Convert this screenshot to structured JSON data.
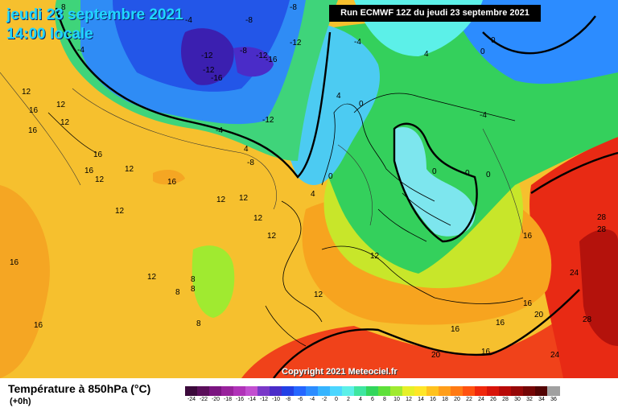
{
  "header": {
    "date_line": "jeudi 23 septembre 2021",
    "time_line": "14:00 locale",
    "run_info": "Run ECMWF 12Z du jeudi 23 septembre 2021"
  },
  "map": {
    "copyright": "Copyright 2021 Meteociel.fr",
    "contour_labels": [
      "8",
      "-8",
      "-4",
      "-8",
      "-12",
      "-12",
      "-8",
      "-12",
      "-16",
      "-12",
      "-16",
      "-12",
      "-4",
      "-4",
      "0",
      "-4",
      "4",
      "0",
      "-4",
      "0",
      "4",
      "4",
      "-8",
      "0",
      "0",
      "0",
      "4",
      "0",
      "12",
      "12",
      "16",
      "16",
      "16",
      "12",
      "16",
      "12",
      "12",
      "12",
      "12",
      "12",
      "12",
      "8",
      "8",
      "8",
      "12",
      "8",
      "12",
      "16",
      "16",
      "28",
      "28",
      "24",
      "16",
      "16",
      "20",
      "24",
      "28",
      "20",
      "16",
      "16",
      "16",
      "12",
      "12",
      "16"
    ]
  },
  "legend": {
    "title": "Température à 850hPa (°C)",
    "subtitle": "(+0h)",
    "scale": [
      {
        "label": "-24",
        "color": "#3b0a3b"
      },
      {
        "label": "-22",
        "color": "#5a0f5a"
      },
      {
        "label": "-20",
        "color": "#7a1480"
      },
      {
        "label": "-18",
        "color": "#98229c"
      },
      {
        "label": "-16",
        "color": "#b033b8"
      },
      {
        "label": "-14",
        "color": "#c24fd0"
      },
      {
        "label": "-12",
        "color": "#7a38c8"
      },
      {
        "label": "-10",
        "color": "#4a2cc8"
      },
      {
        "label": "-8",
        "color": "#2240e6"
      },
      {
        "label": "-6",
        "color": "#2566ff"
      },
      {
        "label": "-4",
        "color": "#2c8cff"
      },
      {
        "label": "-2",
        "color": "#36b4ff"
      },
      {
        "label": "0",
        "color": "#4cd6ff"
      },
      {
        "label": "2",
        "color": "#5cf0e8"
      },
      {
        "label": "4",
        "color": "#3ee6a0"
      },
      {
        "label": "6",
        "color": "#32d65c"
      },
      {
        "label": "8",
        "color": "#5ee03a"
      },
      {
        "label": "10",
        "color": "#a0ea30"
      },
      {
        "label": "12",
        "color": "#e6f028"
      },
      {
        "label": "14",
        "color": "#ffe628"
      },
      {
        "label": "16",
        "color": "#ffc21e"
      },
      {
        "label": "18",
        "color": "#ff9e1a"
      },
      {
        "label": "20",
        "color": "#ff7a14"
      },
      {
        "label": "22",
        "color": "#ff5210"
      },
      {
        "label": "24",
        "color": "#f0280c"
      },
      {
        "label": "26",
        "color": "#d8140a"
      },
      {
        "label": "28",
        "color": "#b80a08"
      },
      {
        "label": "30",
        "color": "#960808"
      },
      {
        "label": "32",
        "color": "#740606"
      },
      {
        "label": "34",
        "color": "#520404"
      },
      {
        "label": "36",
        "color": "#a0a0a0"
      }
    ]
  }
}
